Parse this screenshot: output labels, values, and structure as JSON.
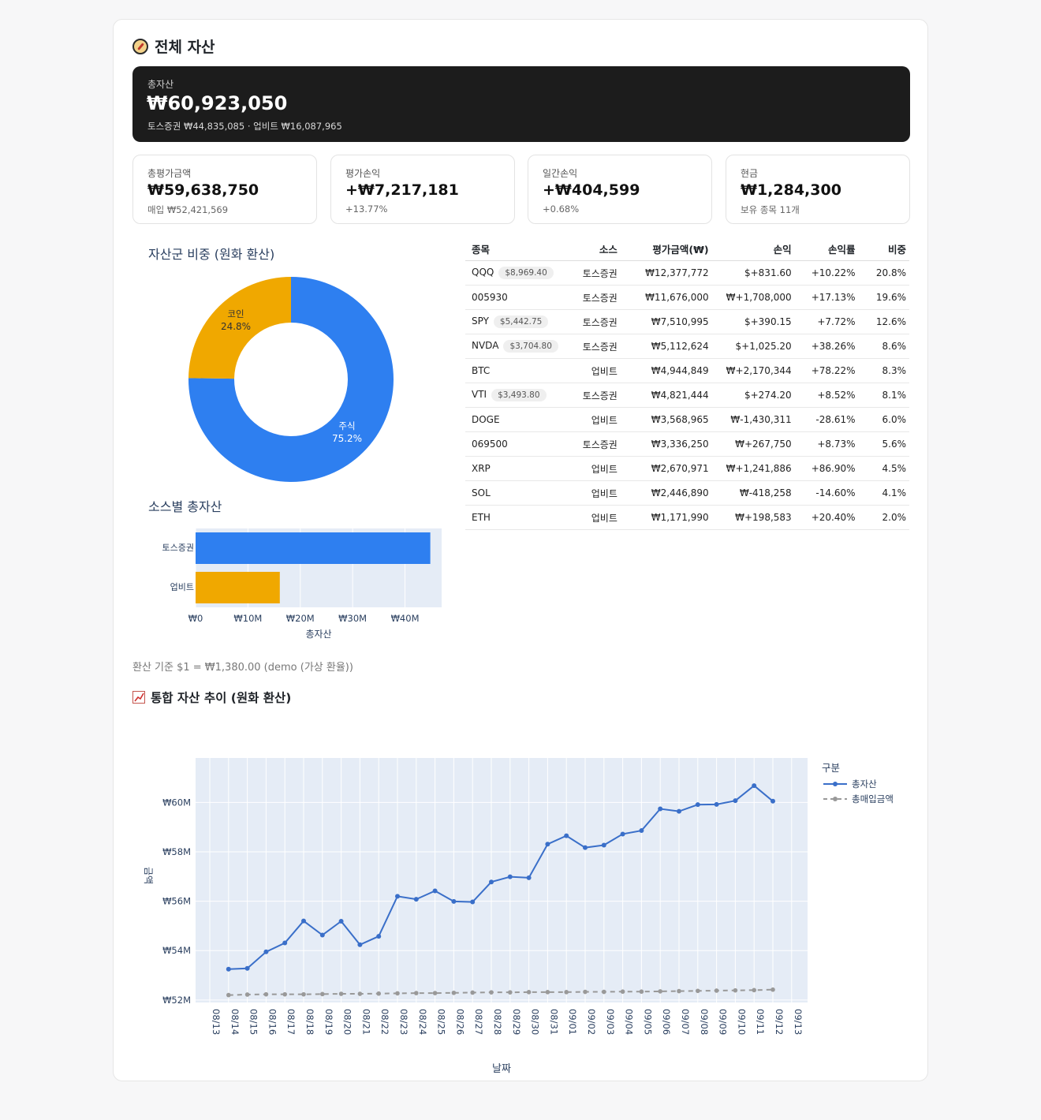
{
  "header": {
    "title": "전체 자산"
  },
  "hero": {
    "label": "총자산",
    "value": "₩60,923,050",
    "sub": "토스증권 ₩44,835,085 · 업비트 ₩16,087,965"
  },
  "metrics": [
    {
      "label": "총평가금액",
      "value": "₩59,638,750",
      "sub": "매입 ₩52,421,569"
    },
    {
      "label": "평가손익",
      "value": "+₩7,217,181",
      "sub": "+13.77%"
    },
    {
      "label": "일간손익",
      "value": "+₩404,599",
      "sub": "+0.68%"
    },
    {
      "label": "현금",
      "value": "₩1,284,300",
      "sub": "보유 종목 11개"
    }
  ],
  "colors": {
    "stock": "#2e7ff0",
    "coin": "#f0a800",
    "pos": "#1e9e48",
    "neg": "#d0302f",
    "line_total": "#3a6fc9",
    "line_cost": "#999999",
    "plot_bg": "#e5ecf6"
  },
  "allocation": {
    "title": "자산군 비중 (원화 환산)",
    "chart_data": {
      "type": "pie",
      "hole": true,
      "slices": [
        {
          "label": "주식",
          "value": 75.2,
          "text": "75.2%"
        },
        {
          "label": "코인",
          "value": 24.8,
          "text": "24.8%"
        }
      ]
    }
  },
  "source_chart": {
    "title": "소스별 총자산",
    "chart_data": {
      "type": "bar",
      "orientation": "horizontal",
      "categories": [
        "토스증권",
        "업비트"
      ],
      "values": [
        44835085,
        16087965
      ],
      "xlabel": "총자산",
      "xticks": [
        "₩0",
        "₩10M",
        "₩20M",
        "₩30M",
        "₩40M"
      ],
      "xlim": [
        0,
        47000000
      ]
    }
  },
  "table": {
    "headers": [
      "종목",
      "소스",
      "평가금액(₩)",
      "손익",
      "손익률",
      "비중"
    ],
    "rows": [
      {
        "name": "QQQ",
        "badge": "$8,969.40",
        "source": "토스증권",
        "value": "₩12,377,772",
        "pl": "$+831.60",
        "plr": "+10.22%",
        "weight": "20.8%",
        "sign": "pos"
      },
      {
        "name": "005930",
        "badge": "",
        "source": "토스증권",
        "value": "₩11,676,000",
        "pl": "₩+1,708,000",
        "plr": "+17.13%",
        "weight": "19.6%",
        "sign": "pos"
      },
      {
        "name": "SPY",
        "badge": "$5,442.75",
        "source": "토스증권",
        "value": "₩7,510,995",
        "pl": "$+390.15",
        "plr": "+7.72%",
        "weight": "12.6%",
        "sign": "pos"
      },
      {
        "name": "NVDA",
        "badge": "$3,704.80",
        "source": "토스증권",
        "value": "₩5,112,624",
        "pl": "$+1,025.20",
        "plr": "+38.26%",
        "weight": "8.6%",
        "sign": "pos"
      },
      {
        "name": "BTC",
        "badge": "",
        "source": "업비트",
        "value": "₩4,944,849",
        "pl": "₩+2,170,344",
        "plr": "+78.22%",
        "weight": "8.3%",
        "sign": "pos"
      },
      {
        "name": "VTI",
        "badge": "$3,493.80",
        "source": "토스증권",
        "value": "₩4,821,444",
        "pl": "$+274.20",
        "plr": "+8.52%",
        "weight": "8.1%",
        "sign": "pos"
      },
      {
        "name": "DOGE",
        "badge": "",
        "source": "업비트",
        "value": "₩3,568,965",
        "pl": "₩-1,430,311",
        "plr": "-28.61%",
        "weight": "6.0%",
        "sign": "neg"
      },
      {
        "name": "069500",
        "badge": "",
        "source": "토스증권",
        "value": "₩3,336,250",
        "pl": "₩+267,750",
        "plr": "+8.73%",
        "weight": "5.6%",
        "sign": "pos"
      },
      {
        "name": "XRP",
        "badge": "",
        "source": "업비트",
        "value": "₩2,670,971",
        "pl": "₩+1,241,886",
        "plr": "+86.90%",
        "weight": "4.5%",
        "sign": "pos"
      },
      {
        "name": "SOL",
        "badge": "",
        "source": "업비트",
        "value": "₩2,446,890",
        "pl": "₩-418,258",
        "plr": "-14.60%",
        "weight": "4.1%",
        "sign": "neg"
      },
      {
        "name": "ETH",
        "badge": "",
        "source": "업비트",
        "value": "₩1,171,990",
        "pl": "₩+198,583",
        "plr": "+20.40%",
        "weight": "2.0%",
        "sign": "pos"
      }
    ]
  },
  "fx_note": "환산 기준 $1 = ₩1,380.00 (demo (가상 환율))",
  "trend": {
    "title": "통합 자산 추이 (원화 환산)",
    "chart_data": {
      "type": "line",
      "xlabel": "날짜",
      "ylabel": "금액",
      "legend_title": "구분",
      "legend_position": "top-right",
      "x": [
        "08/14",
        "08/15",
        "08/16",
        "08/17",
        "08/18",
        "08/19",
        "08/20",
        "08/21",
        "08/22",
        "08/23",
        "08/24",
        "08/25",
        "08/26",
        "08/27",
        "08/28",
        "08/29",
        "08/30",
        "08/31",
        "09/01",
        "09/02",
        "09/03",
        "09/04",
        "09/05",
        "09/06",
        "09/07",
        "09/08",
        "09/09",
        "09/10",
        "09/11",
        "09/12"
      ],
      "xticks": [
        "08/13",
        "08/14",
        "08/15",
        "08/16",
        "08/17",
        "08/18",
        "08/19",
        "08/20",
        "08/21",
        "08/22",
        "08/23",
        "08/24",
        "08/25",
        "08/26",
        "08/27",
        "08/28",
        "08/29",
        "08/30",
        "08/31",
        "09/01",
        "09/02",
        "09/03",
        "09/04",
        "09/05",
        "09/06",
        "09/07",
        "09/08",
        "09/09",
        "09/10",
        "09/11",
        "09/12",
        "09/13"
      ],
      "yticks": [
        "₩52M",
        "₩54M",
        "₩56M",
        "₩58M",
        "₩60M"
      ],
      "ylim": [
        51.9,
        61.8
      ],
      "series": [
        {
          "name": "총자산",
          "values": [
            53.25,
            53.28,
            53.95,
            54.31,
            55.2,
            54.63,
            55.19,
            54.24,
            54.58,
            56.2,
            56.08,
            56.42,
            55.99,
            55.97,
            56.78,
            56.99,
            56.95,
            58.31,
            58.65,
            58.17,
            58.27,
            58.72,
            58.86,
            59.74,
            59.64,
            59.91,
            59.92,
            60.07,
            60.68,
            60.05
          ]
        },
        {
          "name": "총매입금액",
          "values": [
            52.2,
            52.22,
            52.23,
            52.23,
            52.23,
            52.24,
            52.25,
            52.25,
            52.26,
            52.27,
            52.28,
            52.28,
            52.29,
            52.3,
            52.31,
            52.31,
            52.32,
            52.32,
            52.32,
            52.33,
            52.33,
            52.34,
            52.34,
            52.35,
            52.36,
            52.37,
            52.38,
            52.39,
            52.4,
            52.42
          ]
        }
      ]
    }
  }
}
